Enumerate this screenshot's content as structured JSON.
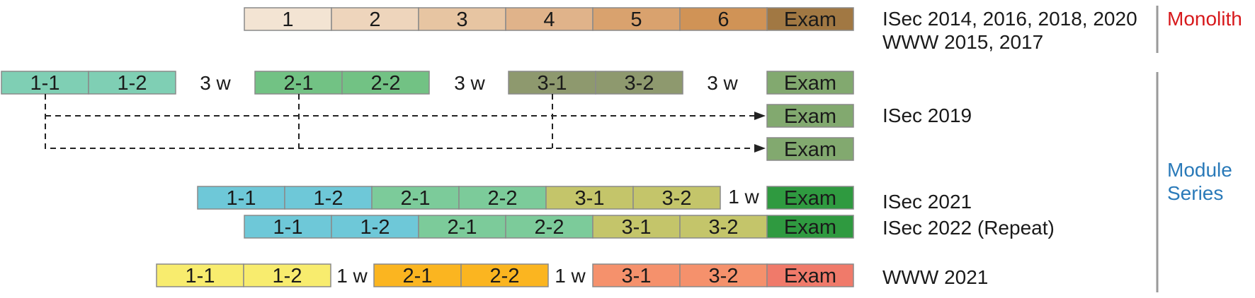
{
  "groups": {
    "monolith": {
      "label": "Monolith",
      "color": "#d7191c"
    },
    "module_series": {
      "label_line1": "Module",
      "label_line2": "Series",
      "color": "#2a7ab9"
    }
  },
  "rows": [
    {
      "id": "monolith",
      "labels": [
        "ISec 2014, 2016, 2018, 2020",
        "WWW 2015, 2017"
      ],
      "cells": [
        {
          "text": "1",
          "color": "#f3e4d3"
        },
        {
          "text": "2",
          "color": "#eed5bc"
        },
        {
          "text": "3",
          "color": "#e7c5a2"
        },
        {
          "text": "4",
          "color": "#e0b38a"
        },
        {
          "text": "5",
          "color": "#d9a26e"
        },
        {
          "text": "6",
          "color": "#d09356"
        },
        {
          "text": "Exam",
          "color": "#a17843"
        }
      ]
    },
    {
      "id": "isec2019",
      "labels": [
        "ISec 2019"
      ],
      "cells": [
        {
          "text": "1-1",
          "color": "#7fcfb4"
        },
        {
          "text": "1-2",
          "color": "#7fcfb4"
        },
        {
          "text": "3 w",
          "color": null
        },
        {
          "text": "2-1",
          "color": "#72c284"
        },
        {
          "text": "2-2",
          "color": "#72c284"
        },
        {
          "text": "3 w",
          "color": null
        },
        {
          "text": "3-1",
          "color": "#8e996e"
        },
        {
          "text": "3-2",
          "color": "#8e996e"
        },
        {
          "text": "3 w",
          "color": null
        },
        {
          "text": "Exam",
          "color": "#82a96f"
        },
        {
          "text": "Exam",
          "color": "#82a96f"
        },
        {
          "text": "Exam",
          "color": "#82a96f"
        }
      ]
    },
    {
      "id": "isec2021",
      "labels": [
        "ISec 2021"
      ],
      "cells": [
        {
          "text": "1-1",
          "color": "#6ec8d8"
        },
        {
          "text": "1-2",
          "color": "#6ec8d8"
        },
        {
          "text": "2-1",
          "color": "#7ccb9a"
        },
        {
          "text": "2-2",
          "color": "#7ccb9a"
        },
        {
          "text": "3-1",
          "color": "#c4c56a"
        },
        {
          "text": "3-2",
          "color": "#c4c56a"
        },
        {
          "text": "1 w",
          "color": null
        },
        {
          "text": "Exam",
          "color": "#2f9a40"
        }
      ]
    },
    {
      "id": "isec2022",
      "labels": [
        "ISec 2022 (Repeat)"
      ],
      "cells": [
        {
          "text": "1-1",
          "color": "#6ec8d8"
        },
        {
          "text": "1-2",
          "color": "#6ec8d8"
        },
        {
          "text": "2-1",
          "color": "#7ccb9a"
        },
        {
          "text": "2-2",
          "color": "#7ccb9a"
        },
        {
          "text": "3-1",
          "color": "#c4c56a"
        },
        {
          "text": "3-2",
          "color": "#c4c56a"
        },
        {
          "text": "Exam",
          "color": "#2f9a40"
        }
      ]
    },
    {
      "id": "www2021",
      "labels": [
        "WWW 2021"
      ],
      "cells": [
        {
          "text": "1-1",
          "color": "#f8ec6e"
        },
        {
          "text": "1-2",
          "color": "#f8ec6e"
        },
        {
          "text": "1 w",
          "color": null
        },
        {
          "text": "2-1",
          "color": "#fbb520"
        },
        {
          "text": "2-2",
          "color": "#fbb520"
        },
        {
          "text": "1 w",
          "color": null
        },
        {
          "text": "3-1",
          "color": "#f5916c"
        },
        {
          "text": "3-2",
          "color": "#f5916c"
        },
        {
          "text": "Exam",
          "color": "#f07a6a"
        }
      ]
    }
  ],
  "colors": {
    "border": "#8a8a8a",
    "divider": "#9a9a9a",
    "dash": "#222222"
  }
}
